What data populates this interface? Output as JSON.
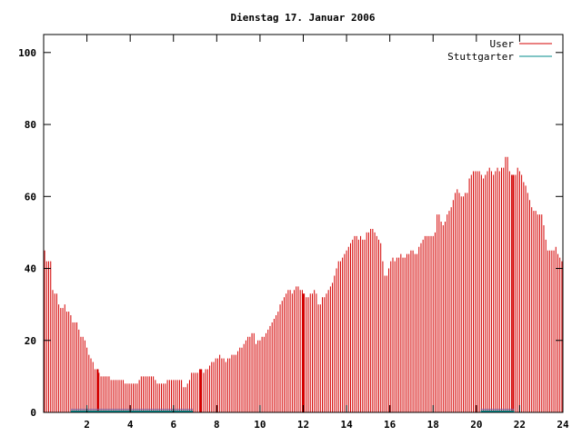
{
  "chart_data": {
    "type": "bar",
    "title": "Dienstag 17. Januar 2006",
    "xlabel": "",
    "ylabel": "",
    "xlim": [
      0,
      24
    ],
    "ylim": [
      0,
      105
    ],
    "x_ticks": [
      2,
      4,
      6,
      8,
      10,
      12,
      14,
      16,
      18,
      20,
      22,
      24
    ],
    "y_ticks": [
      0,
      20,
      40,
      60,
      80,
      100
    ],
    "grid": false,
    "legend_position": "top-right",
    "bar_resolution_hours": 0.0833,
    "series": [
      {
        "name": "User",
        "color": "#d40000",
        "values": [
          45,
          42,
          42,
          42,
          34,
          33,
          33,
          30,
          29,
          29,
          30,
          28,
          28,
          27,
          25,
          25,
          25,
          23,
          21,
          21,
          20,
          18,
          16,
          15,
          14,
          12,
          12,
          11,
          10,
          10,
          10,
          10,
          10,
          9,
          9,
          9,
          9,
          9,
          9,
          9,
          8,
          8,
          8,
          8,
          8,
          8,
          8,
          9,
          10,
          10,
          10,
          10,
          10,
          10,
          10,
          9,
          8,
          8,
          8,
          8,
          8,
          9,
          9,
          9,
          9,
          9,
          9,
          9,
          9,
          7,
          7,
          8,
          9,
          11,
          11,
          11,
          11,
          12,
          12,
          11,
          12,
          12,
          13,
          14,
          14,
          15,
          15,
          16,
          15,
          15,
          14,
          15,
          15,
          16,
          16,
          16,
          17,
          18,
          18,
          19,
          20,
          21,
          21,
          22,
          22,
          19,
          20,
          20,
          21,
          21,
          22,
          23,
          24,
          25,
          26,
          27,
          28,
          30,
          31,
          32,
          33,
          34,
          34,
          33,
          34,
          35,
          35,
          34,
          34,
          33,
          32,
          32,
          33,
          33,
          34,
          33,
          30,
          30,
          32,
          32,
          33,
          34,
          35,
          36,
          38,
          40,
          42,
          42,
          43,
          44,
          45,
          46,
          47,
          48,
          49,
          49,
          48,
          49,
          48,
          48,
          50,
          50,
          51,
          51,
          50,
          49,
          48,
          47,
          42,
          38,
          38,
          40,
          42,
          43,
          42,
          43,
          43,
          44,
          43,
          43,
          44,
          44,
          45,
          45,
          44,
          44,
          46,
          47,
          48,
          49,
          49,
          49,
          49,
          49,
          50,
          55,
          55,
          53,
          52,
          53,
          55,
          56,
          57,
          59,
          61,
          62,
          61,
          60,
          60,
          61,
          61,
          65,
          66,
          67,
          67,
          67,
          67,
          66,
          65,
          66,
          67,
          68,
          67,
          66,
          67,
          68,
          67,
          68,
          68,
          71,
          71,
          67,
          66,
          66,
          66,
          68,
          67,
          66,
          64,
          63,
          61,
          59,
          57,
          56,
          56,
          55,
          55,
          55,
          52,
          48,
          45,
          45,
          45,
          45,
          46,
          44,
          43,
          42
        ]
      },
      {
        "name": "Stuttgarter",
        "color": "#008b8b",
        "segments": [
          [
            1.25,
            4.6
          ],
          [
            4.6,
            6.9
          ],
          [
            20.2,
            21.75
          ]
        ],
        "value": 0.3
      }
    ],
    "highlight_bars_at": [
      2.5,
      7.25,
      12.0,
      21.7
    ]
  }
}
